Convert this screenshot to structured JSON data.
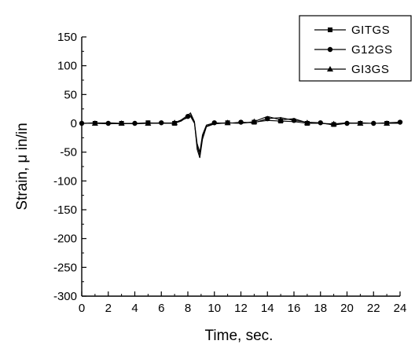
{
  "chart_data": {
    "type": "line",
    "title": "",
    "xlabel": "Time, sec.",
    "ylabel": "Strain, μ in/in",
    "xlim": [
      0,
      24
    ],
    "ylim": [
      -300,
      150
    ],
    "x_ticks": [
      0,
      2,
      4,
      6,
      8,
      10,
      12,
      14,
      16,
      18,
      20,
      22,
      24
    ],
    "y_ticks": [
      150,
      100,
      50,
      0,
      -50,
      -100,
      -150,
      -200,
      -250,
      -300
    ],
    "x_tick_labels": [
      "0",
      "2",
      "4",
      "6",
      "8",
      "10",
      "12",
      "14",
      "16",
      "18",
      "20",
      "22",
      "24"
    ],
    "y_tick_labels": [
      "150",
      "100",
      "50",
      "0",
      "-50",
      "-100",
      "-150",
      "-200",
      "-250",
      "-300"
    ],
    "grid": false,
    "legend_position": "top-right",
    "series": [
      {
        "name": "GITGS",
        "marker": "square",
        "x": [
          0,
          1,
          2,
          3,
          4,
          5,
          6,
          7,
          7.5,
          8,
          8.2,
          8.5,
          8.7,
          8.9,
          9.1,
          9.4,
          10,
          11,
          12,
          13,
          14,
          15,
          16,
          17,
          18,
          19,
          20,
          21,
          22,
          23,
          24
        ],
        "y": [
          0,
          0,
          -1,
          0,
          0,
          1,
          0,
          0,
          5,
          10,
          12,
          0,
          -40,
          -55,
          -25,
          -5,
          0,
          1,
          0,
          2,
          5,
          4,
          3,
          0,
          0,
          -2,
          0,
          0,
          0,
          0,
          1
        ]
      },
      {
        "name": "G12GS",
        "marker": "circle",
        "x": [
          0,
          1,
          2,
          3,
          4,
          5,
          6,
          7,
          7.5,
          8,
          8.2,
          8.5,
          8.7,
          8.9,
          9.1,
          9.4,
          10,
          11,
          12,
          13,
          14,
          15,
          16,
          17,
          18,
          19,
          20,
          21,
          22,
          23,
          24
        ],
        "y": [
          0,
          1,
          0,
          -1,
          0,
          0,
          1,
          0,
          4,
          12,
          15,
          2,
          -35,
          -50,
          -20,
          -3,
          1,
          0,
          2,
          1,
          8,
          10,
          5,
          2,
          1,
          -3,
          0,
          1,
          0,
          1,
          2
        ]
      },
      {
        "name": "GI3GS",
        "marker": "triangle",
        "x": [
          0,
          1,
          2,
          3,
          4,
          5,
          6,
          7,
          7.5,
          8,
          8.2,
          8.5,
          8.7,
          8.9,
          9.1,
          9.4,
          10,
          11,
          12,
          13,
          14,
          15,
          16,
          17,
          18,
          19,
          20,
          21,
          22,
          23,
          24
        ],
        "y": [
          0,
          0,
          1,
          0,
          -1,
          0,
          0,
          1,
          6,
          14,
          18,
          3,
          -45,
          -60,
          -28,
          -6,
          -1,
          1,
          0,
          3,
          12,
          6,
          8,
          1,
          0,
          -1,
          1,
          0,
          0,
          0,
          0
        ]
      }
    ]
  }
}
